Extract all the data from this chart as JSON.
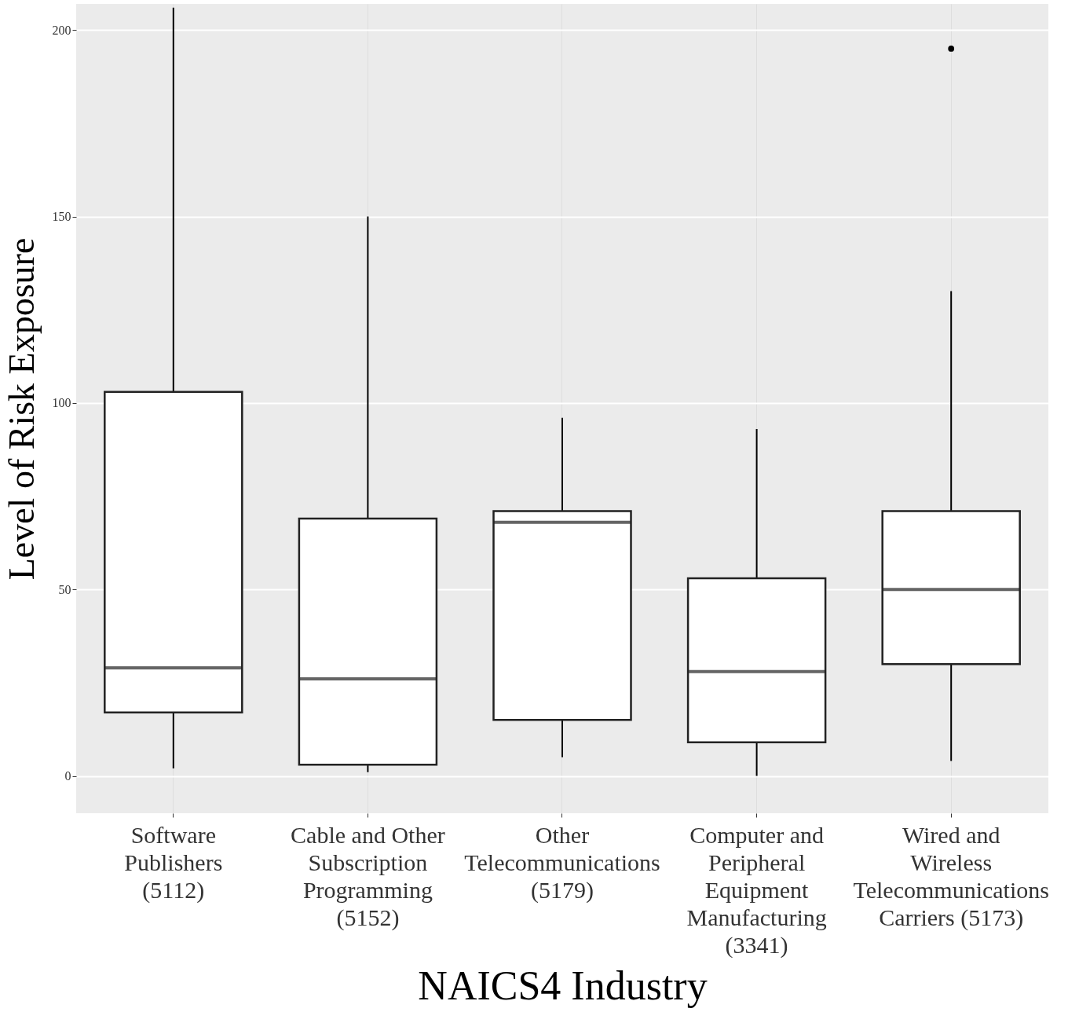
{
  "chart_data": {
    "type": "box",
    "xlabel": "NAICS4 Industry",
    "ylabel": "Level of Risk Exposure",
    "categories": [
      "Software Publishers (5112)",
      "Cable and Other Subscription Programming (5152)",
      "Other Telecommunications (5179)",
      "Computer and Peripheral Equipment Manufacturing (3341)",
      "Wired and Wireless Telecommunications Carriers (5173)"
    ],
    "boxes": [
      {
        "low": 2,
        "q1": 17,
        "median": 29,
        "q3": 103,
        "high": 206
      },
      {
        "low": 1,
        "q1": 3,
        "median": 26,
        "q3": 69,
        "high": 150
      },
      {
        "low": 5,
        "q1": 15,
        "median": 68,
        "q3": 71,
        "high": 96
      },
      {
        "low": 0,
        "q1": 9,
        "median": 28,
        "q3": 53,
        "high": 93
      },
      {
        "low": 4,
        "q1": 30,
        "median": 50,
        "q3": 71,
        "high": 130,
        "outliers": [
          195
        ]
      }
    ],
    "ylim": [
      -10,
      207
    ],
    "yticks": [
      0,
      50,
      100,
      150,
      200
    ],
    "grid": true
  }
}
